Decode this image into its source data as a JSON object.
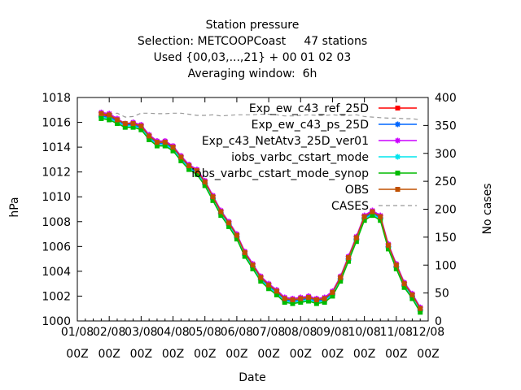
{
  "chart_data": {
    "type": "line",
    "title_lines": [
      "Station pressure",
      "Selection: METCOOPCoast     47 stations",
      "Used {00,03,...,21} + 00 01 02 03",
      "Averaging window:  6h"
    ],
    "xlabel": "Date",
    "ylabel": "hPa",
    "y2label": "No cases",
    "ylim": [
      1000,
      1018
    ],
    "y2lim": [
      0,
      400
    ],
    "xlim": [
      0,
      11
    ],
    "yticks": [
      1000,
      1002,
      1004,
      1006,
      1008,
      1010,
      1012,
      1014,
      1016,
      1018
    ],
    "y2ticks": [
      0,
      50,
      100,
      150,
      200,
      250,
      300,
      350,
      400
    ],
    "xticks": [
      {
        "x": 0,
        "line1": "01/08",
        "line2": "00Z"
      },
      {
        "x": 1,
        "line1": "02/08",
        "line2": "00Z"
      },
      {
        "x": 2,
        "line1": "03/08",
        "line2": "00Z"
      },
      {
        "x": 3,
        "line1": "04/08",
        "line2": "00Z"
      },
      {
        "x": 4,
        "line1": "05/08",
        "line2": "00Z"
      },
      {
        "x": 5,
        "line1": "06/08",
        "line2": "00Z"
      },
      {
        "x": 6,
        "line1": "07/08",
        "line2": "00Z"
      },
      {
        "x": 7,
        "line1": "08/08",
        "line2": "00Z"
      },
      {
        "x": 8,
        "line1": "09/08",
        "line2": "00Z"
      },
      {
        "x": 9,
        "line1": "10/08",
        "line2": "00Z"
      },
      {
        "x": 10,
        "line1": "11/08",
        "line2": "00Z"
      },
      {
        "x": 11,
        "line1": "12/08",
        "line2": "00Z"
      }
    ],
    "legend_position": "top-right",
    "x": [
      0.75,
      1,
      1.25,
      1.5,
      1.75,
      2,
      2.25,
      2.5,
      2.75,
      3,
      3.25,
      3.5,
      3.75,
      4,
      4.25,
      4.5,
      4.75,
      5,
      5.25,
      5.5,
      5.75,
      6,
      6.25,
      6.5,
      6.75,
      7,
      7.25,
      7.5,
      7.75,
      8,
      8.25,
      8.5,
      8.75,
      9,
      9.25,
      9.5,
      9.75,
      10,
      10.25,
      10.5,
      10.75
    ],
    "series": [
      {
        "name": "Exp_ew_c43_ref_25D",
        "color": "#ff0000",
        "marker": "square",
        "values": [
          1016.6,
          1016.5,
          1016.2,
          1015.8,
          1015.9,
          1015.7,
          1014.9,
          1014.4,
          1014.4,
          1014.0,
          1013.2,
          1012.5,
          1012.1,
          1011.2,
          1010.0,
          1008.8,
          1007.9,
          1006.9,
          1005.5,
          1004.5,
          1003.5,
          1002.9,
          1002.4,
          1001.8,
          1001.7,
          1001.8,
          1001.9,
          1001.7,
          1001.8,
          1002.3,
          1003.5,
          1005.1,
          1006.7,
          1008.4,
          1008.8,
          1008.4,
          1006.1,
          1004.5,
          1003.0,
          1002.1,
          1001.0
        ]
      },
      {
        "name": "Exp_ew_c43_ps_25D",
        "color": "#0066ff",
        "marker": "star",
        "values": [
          1016.5,
          1016.4,
          1016.1,
          1015.8,
          1015.8,
          1015.6,
          1014.8,
          1014.3,
          1014.3,
          1013.9,
          1013.1,
          1012.4,
          1012.0,
          1011.1,
          1009.9,
          1008.7,
          1007.8,
          1006.8,
          1005.4,
          1004.4,
          1003.4,
          1002.8,
          1002.3,
          1001.7,
          1001.6,
          1001.7,
          1001.8,
          1001.6,
          1001.7,
          1002.2,
          1003.4,
          1005.0,
          1006.6,
          1008.3,
          1008.7,
          1008.3,
          1006.0,
          1004.4,
          1002.9,
          1002.0,
          1000.9
        ]
      },
      {
        "name": "Exp_c43_NetAtv3_25D_ver01",
        "color": "#cc00ff",
        "marker": "star",
        "values": [
          1016.8,
          1016.7,
          1016.3,
          1015.9,
          1016.0,
          1015.8,
          1015.0,
          1014.5,
          1014.5,
          1014.1,
          1013.3,
          1012.6,
          1012.2,
          1011.3,
          1010.1,
          1008.9,
          1008.0,
          1007.0,
          1005.6,
          1004.6,
          1003.6,
          1003.0,
          1002.5,
          1001.9,
          1001.8,
          1001.9,
          1002.0,
          1001.8,
          1001.9,
          1002.4,
          1003.6,
          1005.2,
          1006.8,
          1008.5,
          1008.9,
          1008.5,
          1006.2,
          1004.6,
          1003.1,
          1002.2,
          1001.1
        ]
      },
      {
        "name": "iobs_varbc_cstart_mode",
        "color": "#00e5ee",
        "marker": "star",
        "values": [
          1016.4,
          1016.3,
          1016.0,
          1015.7,
          1015.7,
          1015.5,
          1014.7,
          1014.2,
          1014.2,
          1013.8,
          1013.0,
          1012.3,
          1011.9,
          1011.0,
          1009.8,
          1008.6,
          1007.7,
          1006.7,
          1005.3,
          1004.3,
          1003.3,
          1002.7,
          1002.2,
          1001.6,
          1001.5,
          1001.6,
          1001.7,
          1001.5,
          1001.6,
          1002.1,
          1003.3,
          1004.9,
          1006.5,
          1008.2,
          1008.6,
          1008.2,
          1005.9,
          1004.3,
          1002.8,
          1001.9,
          1000.8
        ]
      },
      {
        "name": "iobs_varbc_cstart_mode_synop",
        "color": "#00bb00",
        "marker": "square",
        "values": [
          1016.3,
          1016.2,
          1015.9,
          1015.6,
          1015.6,
          1015.4,
          1014.6,
          1014.1,
          1014.1,
          1013.7,
          1012.9,
          1012.2,
          1011.8,
          1010.9,
          1009.7,
          1008.5,
          1007.6,
          1006.6,
          1005.2,
          1004.2,
          1003.2,
          1002.6,
          1002.1,
          1001.5,
          1001.4,
          1001.5,
          1001.6,
          1001.4,
          1001.5,
          1002.0,
          1003.2,
          1004.8,
          1006.4,
          1008.1,
          1008.5,
          1008.1,
          1005.8,
          1004.2,
          1002.7,
          1001.8,
          1000.7
        ]
      },
      {
        "name": "OBS",
        "color": "#c05000",
        "marker": "square",
        "values": [
          1016.7,
          1016.6,
          1016.2,
          1015.9,
          1015.9,
          1015.7,
          1014.9,
          1014.4,
          1014.4,
          1014.0,
          1013.2,
          1012.5,
          1012.1,
          1011.2,
          1010.0,
          1008.8,
          1007.9,
          1006.9,
          1005.5,
          1004.5,
          1003.5,
          1002.9,
          1002.4,
          1001.8,
          1001.7,
          1001.8,
          1001.9,
          1001.7,
          1001.8,
          1002.3,
          1003.5,
          1005.1,
          1006.7,
          1008.4,
          1008.8,
          1008.4,
          1006.1,
          1004.5,
          1003.0,
          1002.1,
          1001.0
        ]
      }
    ],
    "cases": {
      "name": "CASES",
      "color": "#999999",
      "dashed": true,
      "x": [
        0.75,
        1,
        1.25,
        1.5,
        1.75,
        2,
        2.25,
        2.5,
        2.75,
        3,
        3.25,
        3.5,
        3.75,
        4,
        4.25,
        4.5,
        4.75,
        5,
        5.25,
        5.5,
        5.75,
        6,
        6.25,
        6.5,
        6.75,
        7,
        7.25,
        7.5,
        7.75,
        8,
        8.25,
        8.5,
        8.75,
        9,
        9.25,
        9.5,
        9.75,
        10,
        10.25,
        10.5,
        10.75
      ],
      "values": [
        372,
        370,
        372,
        365,
        366,
        372,
        372,
        371,
        371,
        372,
        372,
        370,
        368,
        368,
        369,
        367,
        368,
        369,
        369,
        369,
        370,
        370,
        369,
        367,
        367,
        368,
        369,
        368,
        368,
        369,
        368,
        368,
        369,
        366,
        365,
        364,
        363,
        363,
        362,
        362,
        360
      ]
    }
  }
}
